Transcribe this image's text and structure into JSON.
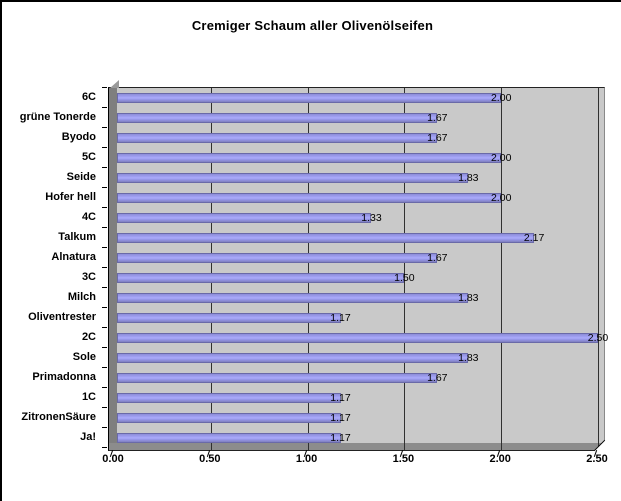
{
  "chart_data": {
    "type": "bar",
    "orientation": "horizontal",
    "title": "Cremiger Schaum aller Olivenölseifen",
    "categories": [
      "6C",
      "grüne Tonerde",
      "Byodo",
      "5C",
      "Seide",
      "Hofer hell",
      "4C",
      "Talkum",
      "Alnatura",
      "3C",
      "Milch",
      "Oliventrester",
      "2C",
      "Sole",
      "Primadonna",
      "1C",
      "ZitronenSäure",
      "Ja!"
    ],
    "values": [
      2.0,
      1.67,
      1.67,
      2.0,
      1.83,
      2.0,
      1.33,
      2.17,
      1.67,
      1.5,
      1.83,
      1.17,
      2.5,
      1.83,
      1.67,
      1.17,
      1.17,
      1.17
    ],
    "value_labels": [
      "2.00",
      "1.67",
      "1.67",
      "2.00",
      "1.83",
      "2.00",
      "1.33",
      "2.17",
      "1.67",
      "1.50",
      "1.83",
      "1.17",
      "2.50",
      "1.83",
      "1.67",
      "1.17",
      "1.17",
      "1.17"
    ],
    "x_ticks": [
      "0.00",
      "0.50",
      "1.00",
      "1.50",
      "2.00",
      "2.50"
    ],
    "xlim": [
      0,
      2.5
    ],
    "grid": "vertical gridlines every 0.50",
    "legend": "none",
    "colors": {
      "bar_fill": "#9999FF",
      "bar_border": "#6666AA",
      "plot_background": "#C9C9C9",
      "wall": "#7F7F7F",
      "gridline": "#303030",
      "text": "#000000",
      "chart_background": "#FFFFFF"
    }
  }
}
